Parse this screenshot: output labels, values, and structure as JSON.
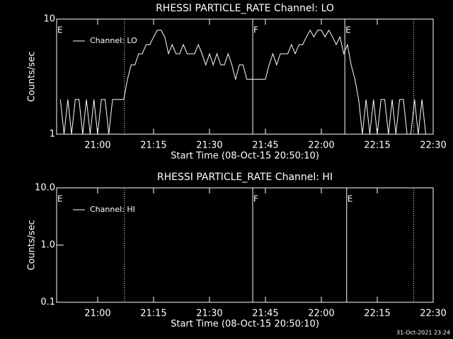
{
  "chart_data": [
    {
      "type": "line",
      "title": "RHESSI PARTICLE_RATE Channel: LO",
      "x_label": "Start Time (08-Oct-15 20:50:10)",
      "y_label": "Counts/sec",
      "xlim": [
        1249,
        1350
      ],
      "xticks": [
        {
          "value": 1260,
          "label": "21:00"
        },
        {
          "value": 1275,
          "label": "21:15"
        },
        {
          "value": 1290,
          "label": "21:30"
        },
        {
          "value": 1305,
          "label": "21:45"
        },
        {
          "value": 1320,
          "label": "22:00"
        },
        {
          "value": 1335,
          "label": "22:15"
        },
        {
          "value": 1350,
          "label": "22:30"
        }
      ],
      "ylim": [
        1,
        10
      ],
      "yticks": [
        1,
        10
      ],
      "log_y": true,
      "annotations": [
        {
          "x": 1249,
          "label": "E",
          "style": "none"
        },
        {
          "x": 1267.2,
          "label": null,
          "style": "dotted"
        },
        {
          "x": 1301.6,
          "label": "F",
          "style": "solid"
        },
        {
          "x": 1326.3,
          "label": "E",
          "style": "solid"
        },
        {
          "x": 1344.8,
          "label": null,
          "style": "dotted"
        }
      ],
      "series": [
        {
          "name": "Channel: LO",
          "color": "#ffffff",
          "x": [
            1250,
            1251,
            1252,
            1253,
            1254,
            1255,
            1256,
            1257,
            1258,
            1259,
            1260,
            1261,
            1262,
            1263,
            1264,
            1265,
            1266,
            1267,
            1268,
            1269,
            1270,
            1271,
            1272,
            1273,
            1274,
            1275,
            1276,
            1277,
            1278,
            1279,
            1280,
            1281,
            1282,
            1283,
            1284,
            1285,
            1286,
            1287,
            1288,
            1289,
            1290,
            1291,
            1292,
            1293,
            1294,
            1295,
            1296,
            1297,
            1298,
            1299,
            1300,
            1301,
            1302,
            1303,
            1304,
            1305,
            1306,
            1307,
            1308,
            1309,
            1310,
            1311,
            1312,
            1313,
            1314,
            1315,
            1316,
            1317,
            1318,
            1319,
            1320,
            1321,
            1322,
            1323,
            1324,
            1325,
            1326,
            1327,
            1328,
            1329,
            1330,
            1331,
            1332,
            1333,
            1334,
            1335,
            1336,
            1337,
            1338,
            1339,
            1340,
            1341,
            1342,
            1343,
            1344,
            1345,
            1346,
            1347,
            1348,
            1349
          ],
          "values": [
            2,
            1,
            2,
            1,
            2,
            2,
            1,
            2,
            1,
            2,
            1,
            2,
            2,
            1,
            2,
            2,
            2,
            2,
            3,
            4,
            4,
            5,
            5,
            6,
            6,
            7,
            8,
            8,
            7,
            5,
            6,
            5,
            5,
            6,
            5,
            5,
            5,
            6,
            5,
            4,
            5,
            4,
            5,
            4,
            4,
            5,
            4,
            3,
            4,
            4,
            3,
            3,
            3,
            3,
            3,
            3,
            4,
            5,
            4,
            5,
            5,
            5,
            6,
            5,
            6,
            6,
            7,
            8,
            7,
            8,
            8,
            7,
            8,
            7,
            6,
            7,
            5,
            6,
            4,
            3,
            2,
            1,
            2,
            1,
            2,
            1,
            2,
            2,
            1,
            2,
            1,
            2,
            2,
            1,
            1,
            2,
            1,
            2,
            1,
            1
          ]
        }
      ]
    },
    {
      "type": "line",
      "title": "RHESSI PARTICLE_RATE Channel: HI",
      "x_label": "Start Time (08-Oct-15 20:50:10)",
      "y_label": "Counts/sec",
      "xlim": [
        1249,
        1350
      ],
      "xticks": [
        {
          "value": 1260,
          "label": "21:00"
        },
        {
          "value": 1275,
          "label": "21:15"
        },
        {
          "value": 1290,
          "label": "21:30"
        },
        {
          "value": 1305,
          "label": "21:45"
        },
        {
          "value": 1320,
          "label": "22:00"
        },
        {
          "value": 1335,
          "label": "22:15"
        },
        {
          "value": 1350,
          "label": "22:30"
        }
      ],
      "ylim": [
        0.1,
        10
      ],
      "yticks": [
        {
          "value": 0.1,
          "label": "0.1"
        },
        {
          "value": 1,
          "label": "1.0"
        },
        {
          "value": 10,
          "label": "10.0"
        }
      ],
      "log_y": true,
      "annotations": [
        {
          "x": 1249,
          "label": "E",
          "style": "none"
        },
        {
          "x": 1267.2,
          "label": null,
          "style": "dotted"
        },
        {
          "x": 1301.6,
          "label": "F",
          "style": "solid"
        },
        {
          "x": 1326.8,
          "label": "E",
          "style": "solid"
        },
        {
          "x": 1344.8,
          "label": null,
          "style": "dotted"
        }
      ],
      "series": [
        {
          "name": "Channel: HI",
          "color": "#ffffff",
          "x": [],
          "values": []
        }
      ]
    }
  ],
  "footer": "31-Oct-2021 23:24"
}
